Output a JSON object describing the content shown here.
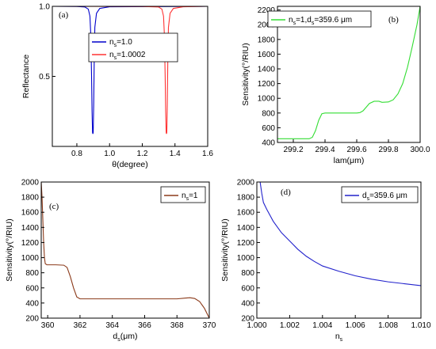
{
  "chart_data": [
    {
      "id": "a",
      "type": "line",
      "panel_label": "(a)",
      "xlabel": "θ(degree)",
      "ylabel": "Reflectance",
      "xlim": [
        0.65,
        1.6
      ],
      "ylim": [
        0,
        1.0
      ],
      "xticks": [
        0.8,
        1.0,
        1.2,
        1.4,
        1.6
      ],
      "yticks": [
        0.5,
        1.0
      ],
      "ytick_labels": [
        "0.5",
        "1.0"
      ],
      "xtick_labels": [
        "0.8",
        "1.0",
        "1.2",
        "1.4",
        "1.6"
      ],
      "grid": false,
      "legend_position": "upper-middle",
      "series": [
        {
          "name_main": "n",
          "name_sub": "s",
          "name_rest": "=1.0",
          "color": "#0000cc",
          "points": [
            [
              0.65,
              1.0
            ],
            [
              0.8,
              0.999
            ],
            [
              0.85,
              0.995
            ],
            [
              0.87,
              0.98
            ],
            [
              0.88,
              0.93
            ],
            [
              0.885,
              0.8
            ],
            [
              0.89,
              0.5
            ],
            [
              0.893,
              0.25
            ],
            [
              0.896,
              0.1
            ],
            [
              0.898,
              0.09
            ],
            [
              0.9,
              0.1
            ],
            [
              0.903,
              0.3
            ],
            [
              0.906,
              0.6
            ],
            [
              0.91,
              0.85
            ],
            [
              0.92,
              0.95
            ],
            [
              0.94,
              0.985
            ],
            [
              1.0,
              0.997
            ],
            [
              1.6,
              1.0
            ]
          ]
        },
        {
          "name_main": "n",
          "name_sub": "s",
          "name_rest": "=1.0002",
          "color": "#ff3333",
          "points": [
            [
              0.65,
              1.0
            ],
            [
              1.2,
              0.999
            ],
            [
              1.3,
              0.995
            ],
            [
              1.32,
              0.98
            ],
            [
              1.33,
              0.93
            ],
            [
              1.335,
              0.8
            ],
            [
              1.34,
              0.5
            ],
            [
              1.343,
              0.25
            ],
            [
              1.346,
              0.1
            ],
            [
              1.348,
              0.09
            ],
            [
              1.35,
              0.1
            ],
            [
              1.353,
              0.3
            ],
            [
              1.356,
              0.6
            ],
            [
              1.36,
              0.85
            ],
            [
              1.37,
              0.95
            ],
            [
              1.39,
              0.985
            ],
            [
              1.45,
              0.997
            ],
            [
              1.6,
              1.0
            ]
          ]
        }
      ]
    },
    {
      "id": "b",
      "type": "line",
      "panel_label": "(b)",
      "xlabel": "lam(μm)",
      "ylabel": "Sensitivity(°/RIU)",
      "xlim": [
        299.1,
        300.0
      ],
      "ylim": [
        400,
        2250
      ],
      "xticks": [
        299.2,
        299.4,
        299.6,
        299.8,
        300.0
      ],
      "xtick_labels": [
        "299.2",
        "299.4",
        "299.6",
        "299.8",
        "300.0"
      ],
      "yticks": [
        400,
        600,
        800,
        1000,
        1200,
        1400,
        1600,
        1800,
        2000,
        2200
      ],
      "ytick_labels": [
        "400",
        "600",
        "800",
        "1000",
        "1200",
        "1400",
        "1600",
        "1800",
        "2000",
        "2200"
      ],
      "grid": false,
      "legend_position": "top-left",
      "series": [
        {
          "name_main": "n",
          "name_sub": "s",
          "name_rest": "=1,d",
          "name_sub2": "s",
          "name_rest2": "=359.6 μm",
          "color": "#33dd33",
          "points": [
            [
              299.1,
              450
            ],
            [
              299.3,
              450
            ],
            [
              299.32,
              470
            ],
            [
              299.34,
              560
            ],
            [
              299.36,
              700
            ],
            [
              299.38,
              790
            ],
            [
              299.4,
              800
            ],
            [
              299.6,
              800
            ],
            [
              299.62,
              805
            ],
            [
              299.64,
              830
            ],
            [
              299.66,
              880
            ],
            [
              299.68,
              930
            ],
            [
              299.71,
              960
            ],
            [
              299.74,
              960
            ],
            [
              299.76,
              945
            ],
            [
              299.8,
              950
            ],
            [
              299.83,
              980
            ],
            [
              299.86,
              1060
            ],
            [
              299.89,
              1200
            ],
            [
              299.92,
              1420
            ],
            [
              299.95,
              1700
            ],
            [
              299.98,
              2000
            ],
            [
              300.0,
              2250
            ]
          ]
        }
      ]
    },
    {
      "id": "c",
      "type": "line",
      "panel_label": "(c)",
      "xlabel_main": "d",
      "xlabel_sub": "s",
      "xlabel_rest": "(μm)",
      "ylabel": "Sensitivity(°/RIU)",
      "xlim": [
        359.6,
        370
      ],
      "ylim": [
        200,
        2000
      ],
      "xticks": [
        360,
        362,
        364,
        366,
        368,
        370
      ],
      "xtick_labels": [
        "360",
        "362",
        "364",
        "366",
        "368",
        "370"
      ],
      "yticks": [
        200,
        400,
        600,
        800,
        1000,
        1200,
        1400,
        1600,
        1800,
        2000
      ],
      "ytick_labels": [
        "200",
        "400",
        "600",
        "800",
        "1000",
        "1200",
        "1400",
        "1600",
        "1800",
        "2000"
      ],
      "grid": false,
      "legend_position": "top-right",
      "series": [
        {
          "name_main": "n",
          "name_sub": "s",
          "name_rest": "=1",
          "color": "#8b3a1a",
          "points": [
            [
              359.6,
              2000
            ],
            [
              359.65,
              1800
            ],
            [
              359.7,
              1500
            ],
            [
              359.75,
              1200
            ],
            [
              359.8,
              1000
            ],
            [
              359.85,
              920
            ],
            [
              359.95,
              905
            ],
            [
              360.5,
              905
            ],
            [
              361.0,
              900
            ],
            [
              361.2,
              870
            ],
            [
              361.4,
              750
            ],
            [
              361.6,
              600
            ],
            [
              361.8,
              480
            ],
            [
              362.0,
              455
            ],
            [
              364,
              455
            ],
            [
              366,
              455
            ],
            [
              368,
              455
            ],
            [
              368.5,
              465
            ],
            [
              368.8,
              470
            ],
            [
              369.1,
              460
            ],
            [
              369.4,
              420
            ],
            [
              369.7,
              330
            ],
            [
              370,
              200
            ]
          ]
        }
      ]
    },
    {
      "id": "d",
      "type": "line",
      "panel_label": "(d)",
      "xlabel_main": "n",
      "xlabel_sub": "s",
      "xlabel_rest": "",
      "ylabel": "Sensitivity(°/RIU)",
      "xlim": [
        1.0,
        1.01
      ],
      "ylim": [
        200,
        2000
      ],
      "xticks": [
        1.0,
        1.002,
        1.004,
        1.006,
        1.008,
        1.01
      ],
      "xtick_labels": [
        "1.000",
        "1.002",
        "1.004",
        "1.006",
        "1.008",
        "1.010"
      ],
      "yticks": [
        200,
        400,
        600,
        800,
        1000,
        1200,
        1400,
        1600,
        1800,
        2000
      ],
      "ytick_labels": [
        "200",
        "400",
        "600",
        "800",
        "1000",
        "1200",
        "1400",
        "1600",
        "1800",
        "2000"
      ],
      "grid": false,
      "legend_position": "top-right",
      "series": [
        {
          "name_main": "d",
          "name_sub": "s",
          "name_rest": "=359.6 μm",
          "color": "#2222cc",
          "points": [
            [
              1.0002,
              2000
            ],
            [
              1.0003,
              1850
            ],
            [
              1.0004,
              1730
            ],
            [
              1.0006,
              1640
            ],
            [
              1.0008,
              1560
            ],
            [
              1.001,
              1480
            ],
            [
              1.0015,
              1330
            ],
            [
              1.002,
              1220
            ],
            [
              1.0025,
              1110
            ],
            [
              1.003,
              1020
            ],
            [
              1.0035,
              950
            ],
            [
              1.004,
              890
            ],
            [
              1.005,
              820
            ],
            [
              1.006,
              760
            ],
            [
              1.007,
              715
            ],
            [
              1.008,
              680
            ],
            [
              1.009,
              655
            ],
            [
              1.01,
              630
            ]
          ]
        }
      ]
    }
  ]
}
